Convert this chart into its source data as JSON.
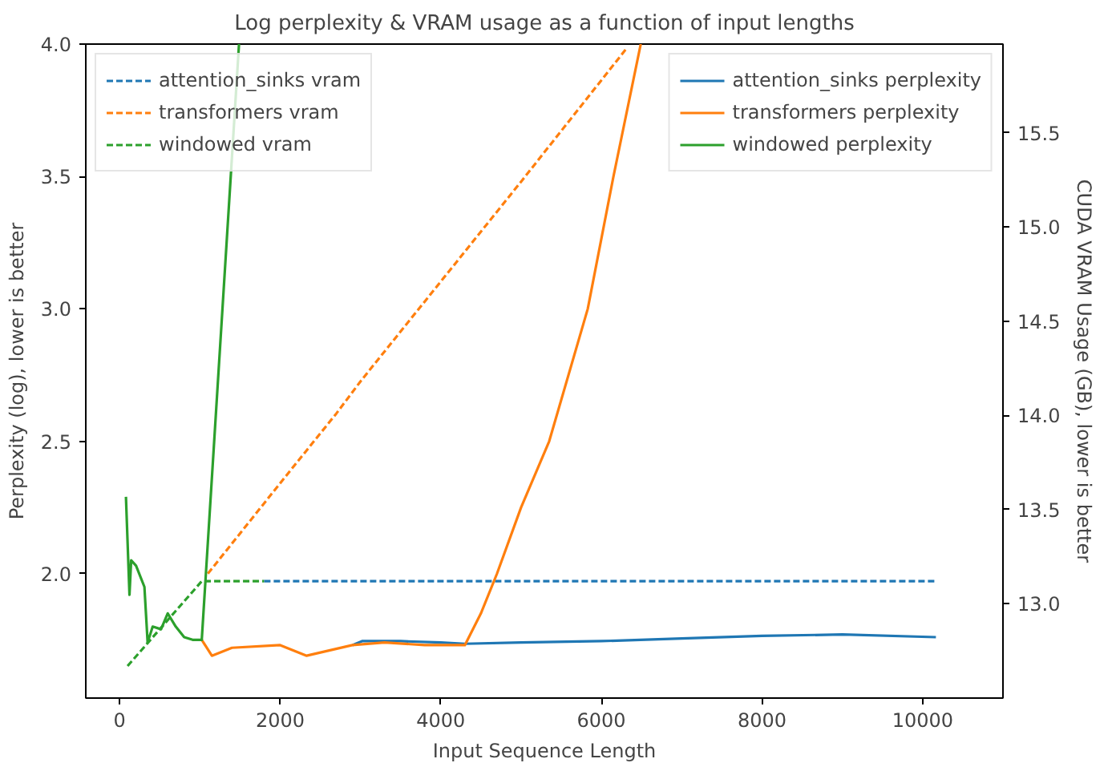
{
  "chart_data": {
    "type": "line",
    "title": "Log perplexity & VRAM usage as a function of input lengths",
    "xlabel": "Input Sequence Length",
    "ylabel": "Perplexity (log), lower is better",
    "y2label": "CUDA VRAM Usage (GB), lower is better",
    "xlim": [
      -420,
      11000
    ],
    "xticks": [
      0,
      2000,
      4000,
      6000,
      8000,
      10000
    ],
    "ylim": [
      1.53,
      4.0
    ],
    "yticks": [
      {
        "value": 2,
        "label": "2.0"
      },
      {
        "value": 2.5,
        "label": "2.5"
      },
      {
        "value": 3,
        "label": "3.0"
      },
      {
        "value": 3.5,
        "label": "3.5"
      },
      {
        "value": 4,
        "label": "4.0"
      }
    ],
    "y2lim": [
      12.5,
      15.97
    ],
    "y2ticks": [
      {
        "value": 13,
        "label": "13.0"
      },
      {
        "value": 13.5,
        "label": "13.5"
      },
      {
        "value": 14,
        "label": "14.0"
      },
      {
        "value": 14.5,
        "label": "14.5"
      },
      {
        "value": 15,
        "label": "15.0"
      },
      {
        "value": 15.5,
        "label": "15.5"
      }
    ],
    "grid": false,
    "legend": "top",
    "series": [
      {
        "name": "attention_sinks vram",
        "color": "#1f77b4",
        "axis": "y2",
        "line_style": "dashed",
        "x": [
          1800,
          10165
        ],
        "values": [
          13.12,
          13.12
        ]
      },
      {
        "name": "transformers vram",
        "color": "#ff7f0e",
        "axis": "y2",
        "line_style": "dashed",
        "x": [
          1100,
          2000,
          2700,
          3000,
          4000,
          5000,
          6300
        ],
        "values": [
          13.16,
          13.64,
          14.01,
          14.18,
          14.71,
          15.24,
          15.94
        ]
      },
      {
        "name": "windowed vram",
        "color": "#2ca02c",
        "axis": "y2",
        "line_style": "dashed",
        "x": [
          100,
          1024,
          1800
        ],
        "values": [
          12.67,
          13.12,
          13.12
        ]
      },
      {
        "name": "attention_sinks perplexity",
        "color": "#1f77b4",
        "line_style": "solid",
        "x": [
          2900,
          3020,
          3500,
          4000,
          4300,
          5000,
          6000,
          7000,
          8000,
          9000,
          10165
        ],
        "values": [
          1.73,
          1.745,
          1.745,
          1.74,
          1.735,
          1.74,
          1.745,
          1.755,
          1.765,
          1.77,
          1.76
        ]
      },
      {
        "name": "transformers perplexity",
        "color": "#ff7f0e",
        "line_style": "solid",
        "x": [
          1024,
          1150,
          1400,
          2000,
          2330,
          2900,
          3300,
          3800,
          4300,
          4500,
          4700,
          5000,
          5350,
          5830,
          6150,
          6490
        ],
        "values": [
          1.75,
          1.69,
          1.72,
          1.73,
          1.69,
          1.73,
          1.74,
          1.73,
          1.73,
          1.85,
          2.0,
          2.25,
          2.5,
          3.0,
          3.5,
          4.0
        ]
      },
      {
        "name": "windowed perplexity",
        "color": "#2ca02c",
        "line_style": "solid",
        "x": [
          80,
          124,
          145,
          206,
          310,
          350,
          413,
          517,
          600,
          700,
          805,
          910,
          1024,
          1488
        ],
        "values": [
          2.29,
          1.92,
          2.05,
          2.03,
          1.95,
          1.74,
          1.8,
          1.79,
          1.85,
          1.8,
          1.76,
          1.75,
          1.75,
          4.0
        ]
      }
    ]
  }
}
